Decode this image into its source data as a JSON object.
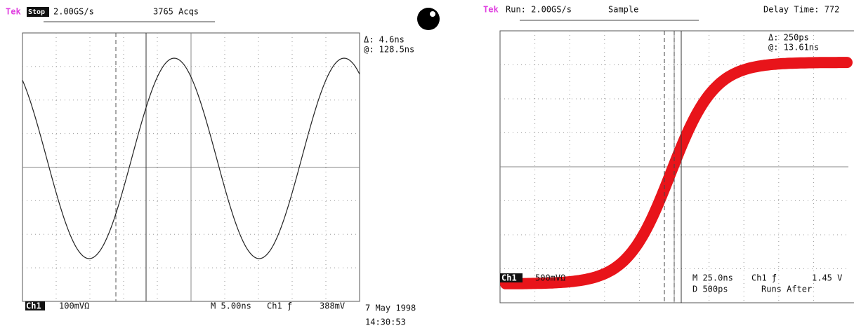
{
  "left": {
    "header": {
      "brand": "Tek",
      "mode": "Stop",
      "rate": "2.00GS/s",
      "acqs": "3765 Acqs"
    },
    "readout": {
      "delta": "Δ: 4.6ns",
      "at": "@: 128.5ns"
    },
    "footer": {
      "channel": "Ch1",
      "scale": "100mVΩ",
      "timebase": "M 5.00ns",
      "trigger": "Ch1 ƒ",
      "level": "388mV",
      "date": "7 May 1998",
      "time": "14:30:53"
    }
  },
  "right": {
    "header": {
      "brand": "Tek",
      "status": "Run: 2.00GS/s",
      "mode": "Sample",
      "delay": "Delay Time: 772"
    },
    "readout": {
      "delta": "Δ: 250ps",
      "at": "@: 13.61ns"
    },
    "footer": {
      "channel": "Ch1",
      "scale": "500mVΩ",
      "timebase": "M 25.0ns",
      "trigger": "Ch1 ƒ",
      "level": "1.45 V",
      "delay": "D  500ps",
      "runs": "Runs After"
    }
  }
}
